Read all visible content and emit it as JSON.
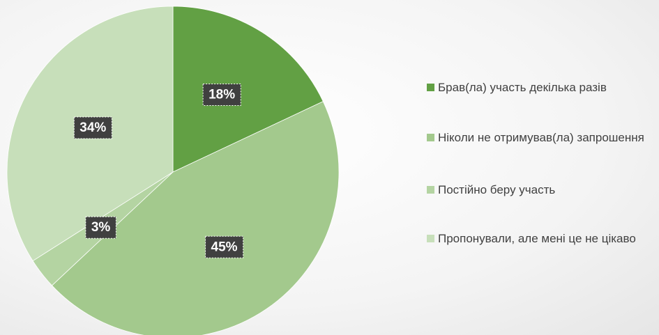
{
  "chart_data": {
    "type": "pie",
    "categories": [
      "Брав(ла) участь декілька разів",
      "Ніколи не отримував(ла) запрошення",
      "Постійно беру участь",
      "Пропонували, але мені це не цікаво"
    ],
    "values": [
      18,
      45,
      3,
      34
    ],
    "value_labels": [
      "18%",
      "45%",
      "3%",
      "34%"
    ],
    "colors": [
      "#62a044",
      "#a3c98d",
      "#b4d4a2",
      "#c7dfba"
    ],
    "legend": "right"
  }
}
